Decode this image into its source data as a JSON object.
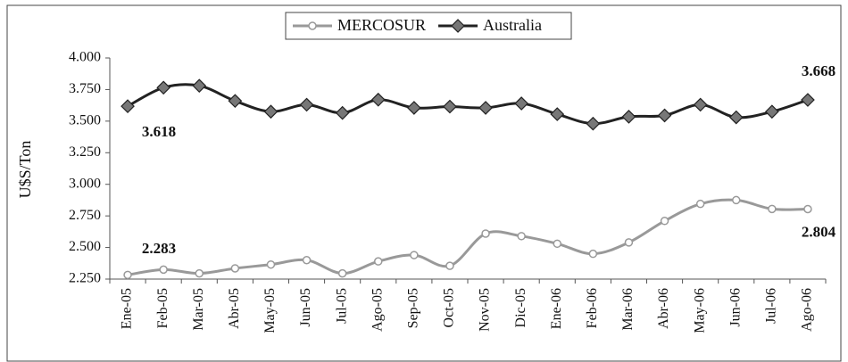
{
  "chart_data": {
    "type": "line",
    "y_label": "U$S/Ton",
    "categories": [
      "Ene-05",
      "Feb-05",
      "Mar-05",
      "Abr-05",
      "May-05",
      "Jun-05",
      "Jul-05",
      "Ago-05",
      "Sep-05",
      "Oct-05",
      "Nov-05",
      "Dic-05",
      "Ene-06",
      "Feb-06",
      "Mar-06",
      "Abr-06",
      "May-06",
      "Jun-06",
      "Jul-06",
      "Ago-06"
    ],
    "series": [
      {
        "name": "MERCOSUR",
        "color": "#999999",
        "marker": "circle",
        "values": [
          2283,
          2325,
          2295,
          2335,
          2365,
          2400,
          2295,
          2390,
          2440,
          2355,
          2610,
          2590,
          2530,
          2450,
          2540,
          2710,
          2845,
          2875,
          2805,
          2804
        ],
        "value_labels": [
          "2.283",
          null,
          null,
          null,
          null,
          null,
          null,
          null,
          null,
          null,
          null,
          null,
          null,
          null,
          null,
          null,
          null,
          null,
          null,
          "2.804"
        ]
      },
      {
        "name": "Australia",
        "color": "#222222",
        "marker": "diamond",
        "values": [
          3618,
          3765,
          3780,
          3660,
          3575,
          3630,
          3565,
          3670,
          3605,
          3615,
          3605,
          3640,
          3555,
          3480,
          3535,
          3545,
          3630,
          3530,
          3575,
          3668
        ],
        "value_labels": [
          "3.618",
          null,
          null,
          null,
          null,
          null,
          null,
          null,
          null,
          null,
          null,
          null,
          null,
          null,
          null,
          null,
          null,
          null,
          null,
          "3.668"
        ]
      }
    ],
    "ylim": [
      2250,
      4000
    ],
    "yticks": [
      {
        "value": 2250,
        "label": "2.250"
      },
      {
        "value": 2500,
        "label": "2.500"
      },
      {
        "value": 2750,
        "label": "2.750"
      },
      {
        "value": 3000,
        "label": "3.000"
      },
      {
        "value": 3250,
        "label": "3.250"
      },
      {
        "value": 3500,
        "label": "3.500"
      },
      {
        "value": 3750,
        "label": "3.750"
      },
      {
        "value": 4000,
        "label": "4.000"
      }
    ],
    "legend": "top",
    "smooth": true
  }
}
